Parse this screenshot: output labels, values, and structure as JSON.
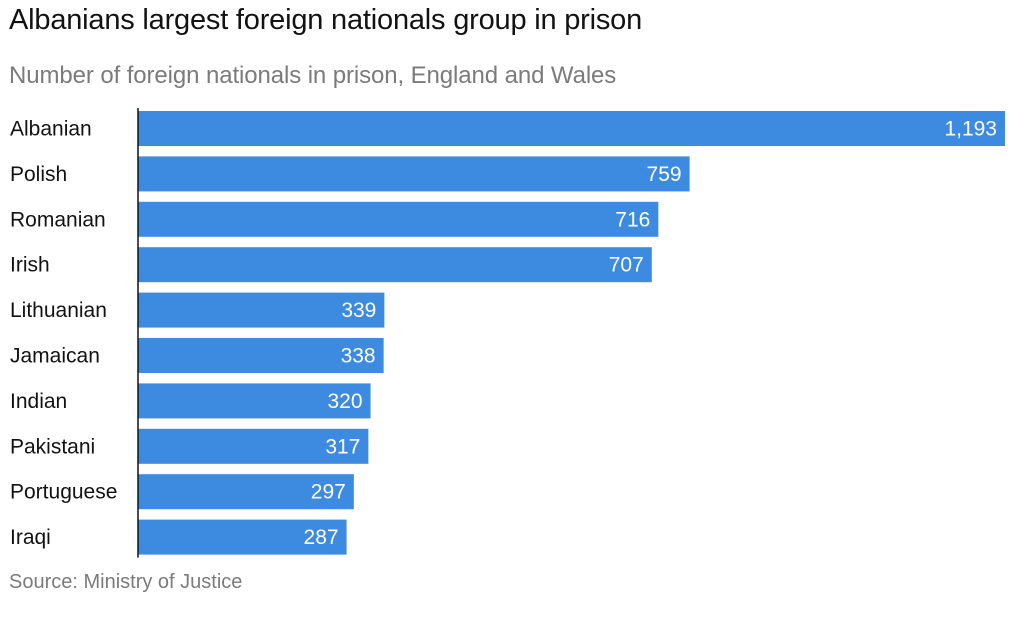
{
  "header": {
    "title": "Albanians largest foreign nationals group in prison",
    "subtitle": "Number of foreign nationals in prison, England and Wales"
  },
  "footer": {
    "source": "Source: Ministry of Justice"
  },
  "colors": {
    "bar": "#3d8be0",
    "axis": "#121212",
    "value_text": "#ffffff"
  },
  "chart_data": {
    "type": "bar",
    "orientation": "horizontal",
    "title": "Albanians largest foreign nationals group in prison",
    "subtitle": "Number of foreign nationals in prison, England and Wales",
    "xlabel": "",
    "ylabel": "",
    "grid": false,
    "xlim": [
      0,
      1193
    ],
    "categories": [
      "Albanian",
      "Polish",
      "Romanian",
      "Irish",
      "Lithuanian",
      "Jamaican",
      "Indian",
      "Pakistani",
      "Portuguese",
      "Iraqi"
    ],
    "values": [
      1193,
      759,
      716,
      707,
      339,
      338,
      320,
      317,
      297,
      287
    ],
    "value_labels": [
      "1,193",
      "759",
      "716",
      "707",
      "339",
      "338",
      "320",
      "317",
      "297",
      "287"
    ]
  }
}
